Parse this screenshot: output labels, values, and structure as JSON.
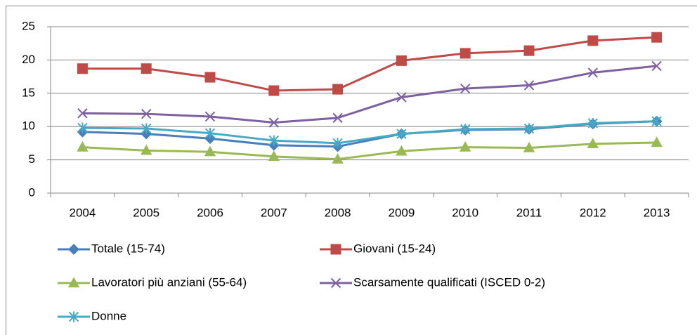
{
  "chart_data": {
    "type": "line",
    "categories": [
      "2004",
      "2005",
      "2006",
      "2007",
      "2008",
      "2009",
      "2010",
      "2011",
      "2012",
      "2013"
    ],
    "series": [
      {
        "name": "Totale (15-74)",
        "color": "#4a7ebb",
        "marker": "diamond",
        "values": [
          9.2,
          8.9,
          8.2,
          7.2,
          7.0,
          8.9,
          9.5,
          9.6,
          10.4,
          10.8
        ]
      },
      {
        "name": "Giovani (15-24)",
        "color": "#be4b48",
        "marker": "square",
        "values": [
          18.7,
          18.7,
          17.4,
          15.4,
          15.6,
          19.9,
          21.0,
          21.4,
          22.9,
          23.4
        ]
      },
      {
        "name": "Lavoratori più anziani (55-64)",
        "color": "#98b954",
        "marker": "triangle",
        "values": [
          6.9,
          6.4,
          6.2,
          5.5,
          5.1,
          6.3,
          6.9,
          6.8,
          7.4,
          7.6
        ]
      },
      {
        "name": "Scarsamente qualificati (ISCED 0-2)",
        "color": "#7d60a0",
        "marker": "x",
        "values": [
          12.0,
          11.9,
          11.5,
          10.6,
          11.3,
          14.4,
          15.7,
          16.2,
          18.1,
          19.1
        ]
      },
      {
        "name": "Donne",
        "color": "#46aac5",
        "marker": "star",
        "values": [
          9.8,
          9.7,
          9.0,
          7.9,
          7.5,
          8.9,
          9.6,
          9.7,
          10.5,
          10.8
        ]
      }
    ],
    "ylim": [
      0,
      25
    ],
    "yticks": [
      0,
      5,
      10,
      15,
      20,
      25
    ],
    "grid": true,
    "legend": "bottom"
  }
}
